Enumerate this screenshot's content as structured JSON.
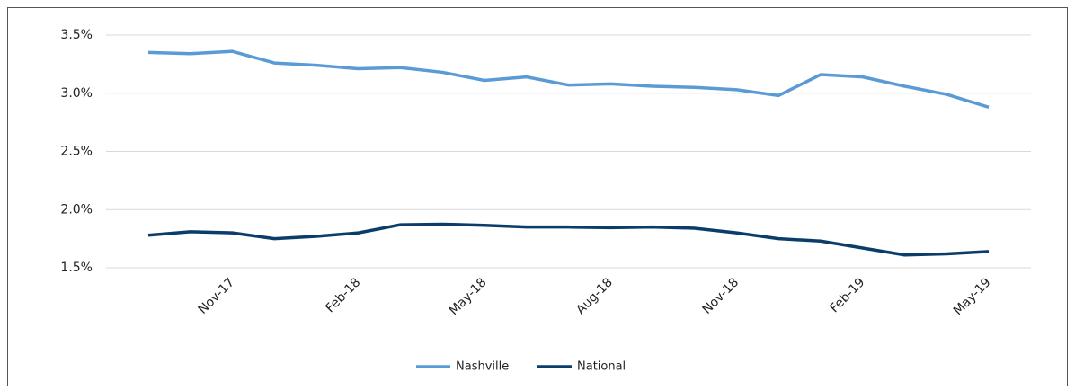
{
  "chart_data": {
    "type": "line",
    "categories": [
      null,
      null,
      "Nov-17",
      null,
      null,
      "Feb-18",
      null,
      null,
      "May-18",
      null,
      null,
      "Aug-18",
      null,
      null,
      "Nov-18",
      null,
      null,
      "Feb-19",
      null,
      null,
      "May-19"
    ],
    "series": [
      {
        "name": "Nashville",
        "color": "#5b9bd5",
        "values": [
          3.35,
          3.34,
          3.36,
          3.26,
          3.24,
          3.21,
          3.22,
          3.18,
          3.11,
          3.14,
          3.07,
          3.08,
          3.06,
          3.05,
          3.03,
          2.98,
          3.16,
          3.14,
          3.06,
          2.99,
          2.88
        ]
      },
      {
        "name": "National",
        "color": "#0b3d6b",
        "values": [
          1.78,
          1.81,
          1.8,
          1.75,
          1.77,
          1.8,
          1.87,
          1.875,
          1.865,
          1.85,
          1.85,
          1.845,
          1.85,
          1.84,
          1.8,
          1.75,
          1.73,
          1.67,
          1.61,
          1.62,
          1.64
        ]
      }
    ],
    "ylim": [
      1.5,
      3.5
    ],
    "yticks": [
      {
        "value": 1.5,
        "label": "1.5%"
      },
      {
        "value": 2.0,
        "label": "2.0%"
      },
      {
        "value": 2.5,
        "label": "2.5%"
      },
      {
        "value": 3.0,
        "label": "3.0%"
      },
      {
        "value": 3.5,
        "label": "3.5%"
      }
    ],
    "grid": true,
    "legend": "bottom"
  }
}
